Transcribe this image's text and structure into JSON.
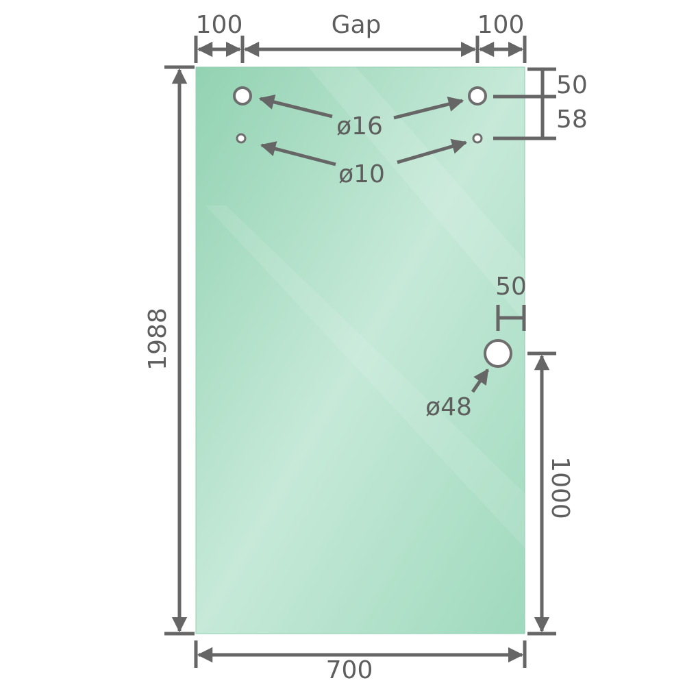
{
  "colors": {
    "glass": "#9dd8bb",
    "glass_light": "#c9eadb",
    "line": "#666666",
    "text": "#5e5e5e"
  },
  "labels": {
    "left_edge": "100",
    "gap": "Gap",
    "right_edge": "100",
    "top_offset": "50",
    "hole_spacing": "58",
    "large_holes": "ø16",
    "small_holes": "ø10",
    "handle_offset": "50",
    "handle_hole": "ø48",
    "height": "1988",
    "handle_height": "1000",
    "width": "700"
  }
}
